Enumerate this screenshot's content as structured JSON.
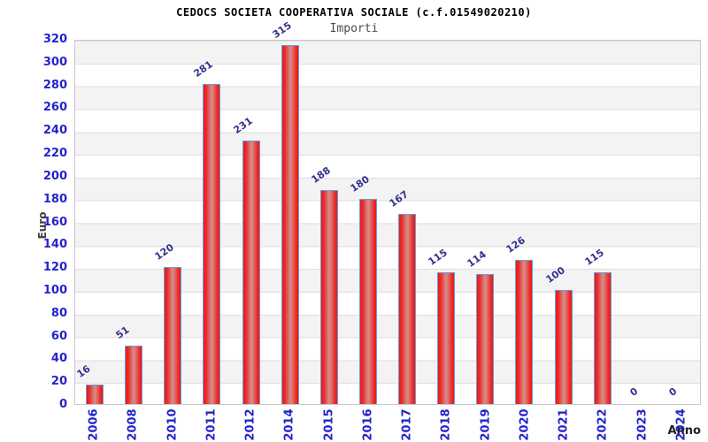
{
  "title": "CEDOCS SOCIETA COOPERATIVA SOCIALE (c.f.01549020210)",
  "subtitle": "Importi",
  "y_axis_title": "Euro",
  "x_axis_title": "Anno",
  "colors": {
    "axis_tick_label": "#2323cc",
    "value_label": "#31318c",
    "bar_fill": "#ee1717",
    "bar_highlight": "#d28b86",
    "bar_border": "#5fa2dc",
    "band_gray": "#f3f3f3",
    "gridline": "#dedede",
    "plot_border": "#c9c9c9",
    "title_color": "#000000",
    "subtitle_color": "#4b4b4b"
  },
  "chart_data": {
    "type": "bar",
    "title": "CEDOCS SOCIETA COOPERATIVA SOCIALE (c.f.01549020210)",
    "subtitle": "Importi",
    "xlabel": "Anno",
    "ylabel": "Euro",
    "categories": [
      "2006",
      "2008",
      "2010",
      "2011",
      "2012",
      "2014",
      "2015",
      "2016",
      "2017",
      "2018",
      "2019",
      "2020",
      "2021",
      "2022",
      "2023",
      "2024"
    ],
    "values": [
      16,
      51,
      120,
      281,
      231,
      315,
      188,
      180,
      167,
      115,
      114,
      126,
      100,
      115,
      0,
      0
    ],
    "ylim": [
      0,
      320
    ],
    "ytick_step": 20,
    "grid": "horizontal alternating bands, gray and white, 20-unit height",
    "legend": "none",
    "bar_labels_rotation_deg": -35,
    "xtick_rotation_deg": -90
  }
}
